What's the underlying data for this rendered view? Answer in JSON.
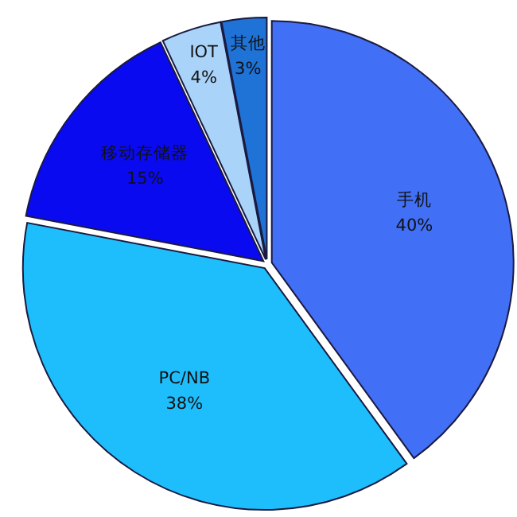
{
  "chart_data": {
    "type": "pie",
    "categories": [
      "手机",
      "PC/NB",
      "移动存储器",
      "IOT",
      "其他"
    ],
    "values": [
      40,
      38,
      15,
      4,
      3
    ],
    "colors": [
      "#416ff5",
      "#1ebefc",
      "#0a0af0",
      "#a9d3f9",
      "#1f72d6"
    ],
    "value_labels": [
      "40%",
      "38%",
      "15%",
      "4%",
      "3%"
    ]
  }
}
